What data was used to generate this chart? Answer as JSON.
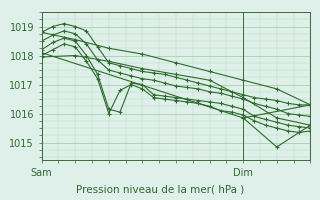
{
  "xlabel": "Pression niveau de la mer( hPa )",
  "bg_color": "#dff0ea",
  "line_color": "#2d6a2d",
  "grid_color_major": "#9ec8a0",
  "grid_color_minor": "#b8d8ba",
  "axis_color": "#3a6a3a",
  "text_color": "#2d6a2d",
  "ylim": [
    1014.4,
    1019.5
  ],
  "xlim": [
    0,
    48
  ],
  "xtick_positions": [
    0,
    36
  ],
  "xtick_labels": [
    "Sam",
    "Dim"
  ],
  "ytick_positions": [
    1015,
    1016,
    1017,
    1018,
    1019
  ],
  "vline_x": 36,
  "series": [
    {
      "x": [
        0,
        2,
        4,
        6,
        8,
        10,
        12,
        14,
        16,
        18,
        20,
        22,
        24,
        26,
        28,
        30,
        32,
        34,
        36,
        38,
        40,
        42,
        44,
        46,
        48
      ],
      "y": [
        1018.8,
        1019.0,
        1019.1,
        1019.0,
        1018.85,
        1018.3,
        1017.75,
        1017.65,
        1017.55,
        1017.45,
        1017.4,
        1017.35,
        1017.25,
        1017.15,
        1017.05,
        1016.95,
        1016.85,
        1016.75,
        1016.65,
        1016.55,
        1016.5,
        1016.45,
        1016.35,
        1016.3,
        1016.3
      ]
    },
    {
      "x": [
        0,
        2,
        4,
        6,
        8,
        10,
        12,
        14,
        16,
        18,
        20,
        22,
        24,
        26,
        28,
        30,
        32,
        34,
        36,
        38,
        40,
        42,
        44,
        46,
        48
      ],
      "y": [
        1018.5,
        1018.7,
        1018.85,
        1018.75,
        1018.4,
        1017.85,
        1017.5,
        1017.4,
        1017.3,
        1017.2,
        1017.15,
        1017.05,
        1016.95,
        1016.9,
        1016.85,
        1016.75,
        1016.7,
        1016.6,
        1016.5,
        1016.35,
        1016.25,
        1016.15,
        1016.0,
        1015.95,
        1015.9
      ]
    },
    {
      "x": [
        0,
        2,
        4,
        6,
        8,
        10,
        12,
        14,
        16,
        18,
        20,
        22,
        24,
        26,
        28,
        30,
        32,
        34,
        36,
        38,
        40,
        42,
        44,
        46,
        48
      ],
      "y": [
        1018.2,
        1018.45,
        1018.6,
        1018.5,
        1018.0,
        1017.35,
        1016.15,
        1016.05,
        1017.05,
        1017.0,
        1016.65,
        1016.6,
        1016.55,
        1016.5,
        1016.45,
        1016.4,
        1016.35,
        1016.25,
        1016.15,
        1015.9,
        1015.8,
        1015.7,
        1015.6,
        1015.55,
        1015.5
      ]
    },
    {
      "x": [
        0,
        2,
        4,
        6,
        8,
        10,
        12,
        14,
        16,
        18,
        20,
        22,
        24,
        26,
        28,
        30,
        32,
        34,
        36,
        38,
        40,
        42,
        44,
        46,
        48
      ],
      "y": [
        1018.0,
        1018.2,
        1018.4,
        1018.3,
        1017.8,
        1017.2,
        1016.0,
        1016.8,
        1017.0,
        1016.85,
        1016.55,
        1016.5,
        1016.45,
        1016.4,
        1016.35,
        1016.25,
        1016.1,
        1016.05,
        1015.95,
        1015.75,
        1015.6,
        1015.5,
        1015.4,
        1015.35,
        1015.4
      ]
    },
    {
      "x": [
        0,
        6,
        12,
        18,
        24,
        30,
        36,
        42,
        48
      ],
      "y": [
        1018.8,
        1018.55,
        1018.25,
        1018.05,
        1017.75,
        1017.45,
        1017.15,
        1016.85,
        1016.3
      ]
    },
    {
      "x": [
        0,
        6,
        12,
        18,
        24,
        30,
        36,
        42,
        48
      ],
      "y": [
        1017.95,
        1018.0,
        1017.8,
        1017.55,
        1017.35,
        1017.15,
        1016.55,
        1015.85,
        1015.6
      ]
    },
    {
      "x": [
        0,
        36,
        48
      ],
      "y": [
        1018.1,
        1015.85,
        1016.3
      ]
    },
    {
      "x": [
        36,
        42,
        46,
        48
      ],
      "y": [
        1015.85,
        1014.85,
        1015.35,
        1015.6
      ]
    }
  ]
}
